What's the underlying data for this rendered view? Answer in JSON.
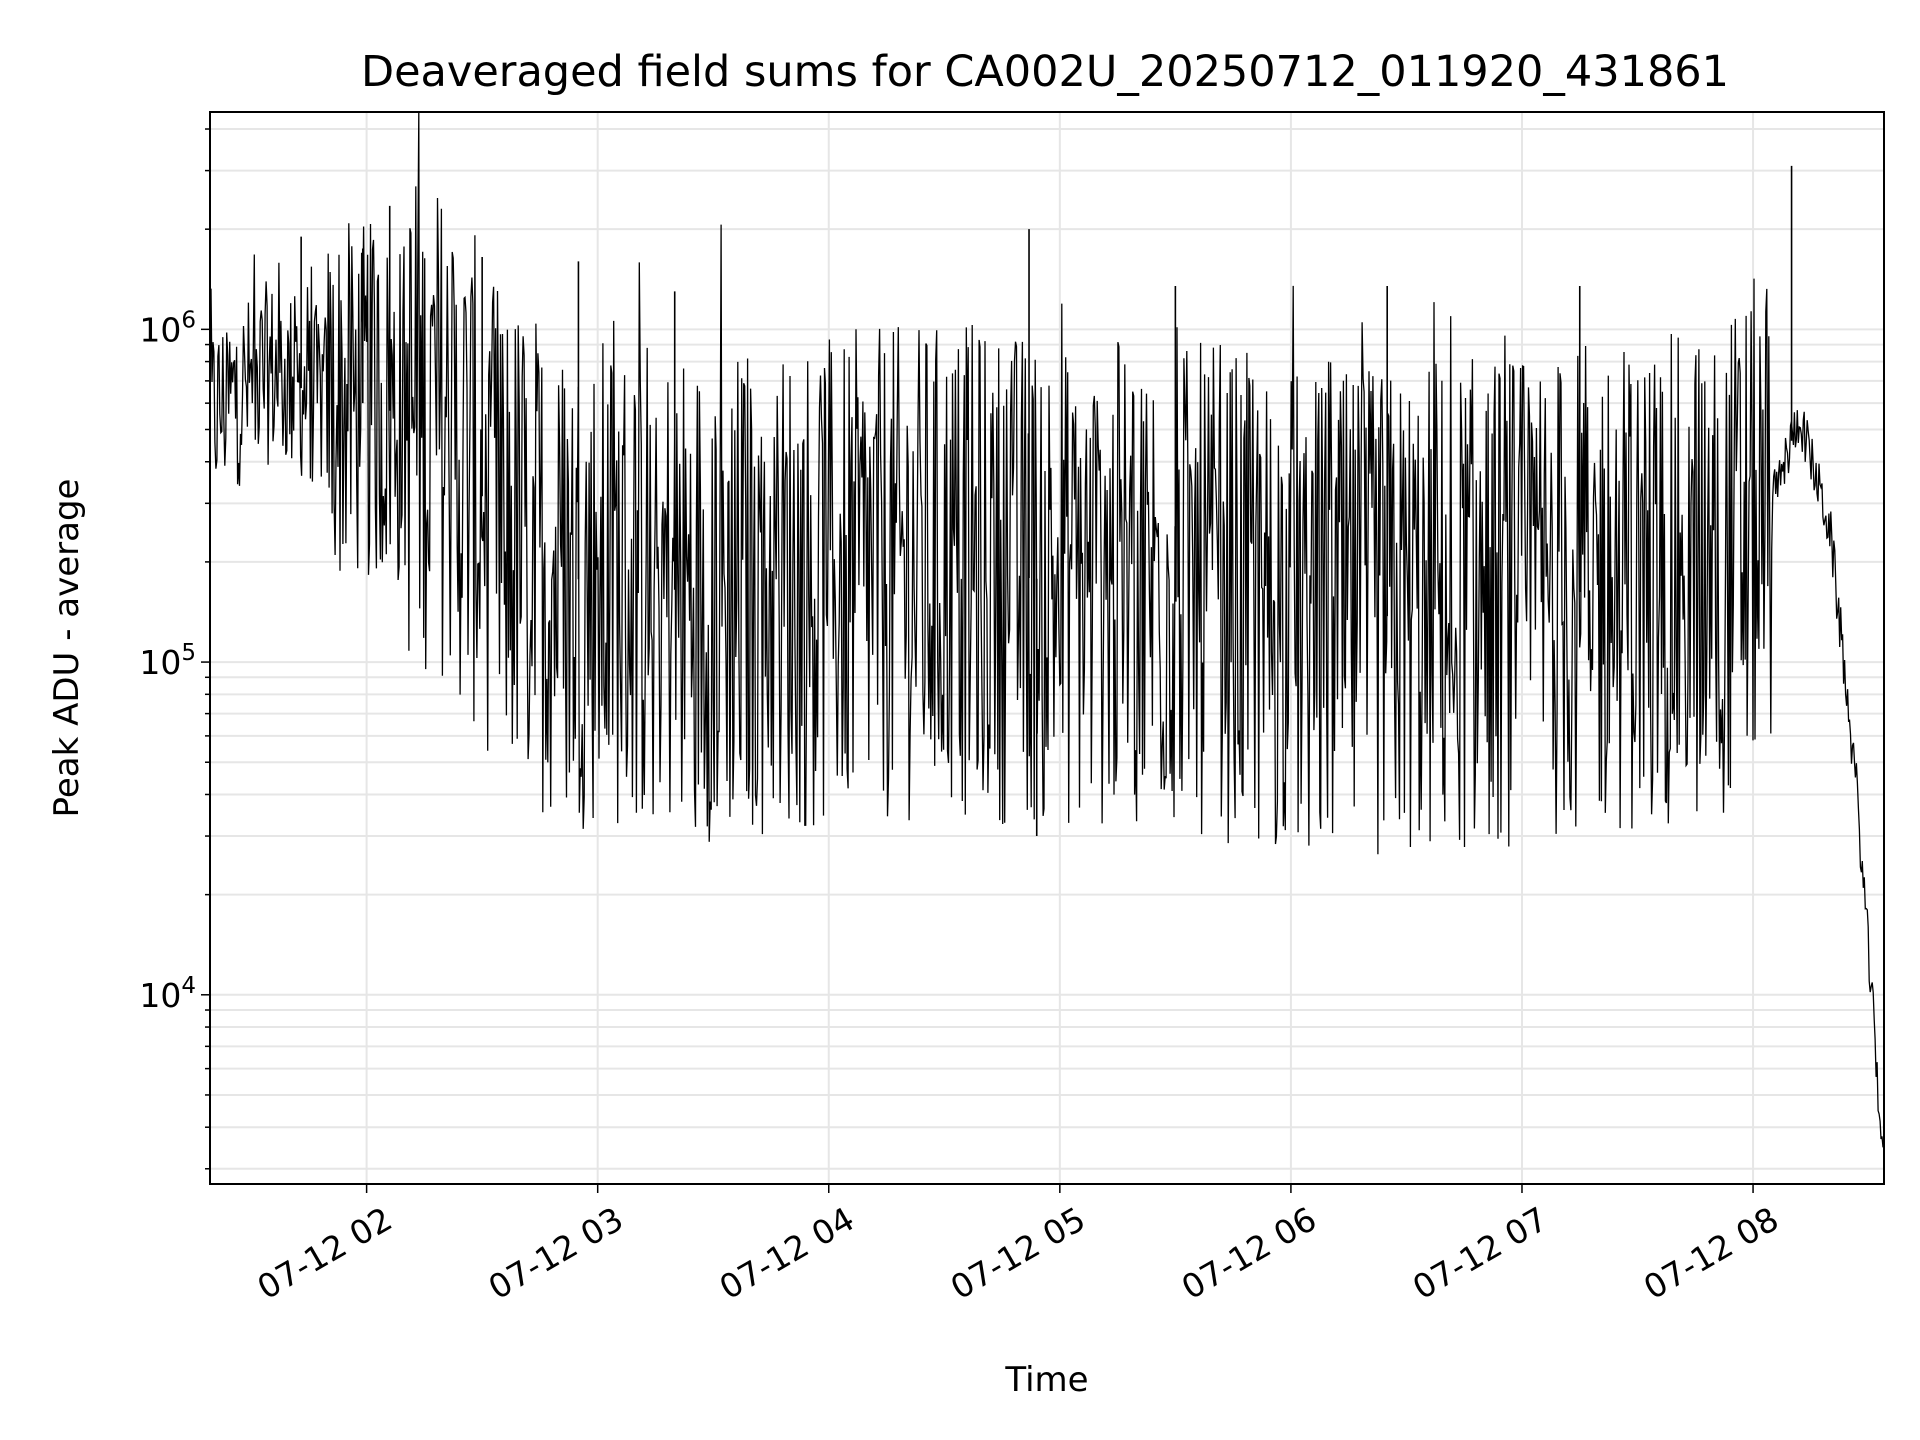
{
  "chart_data": {
    "type": "line",
    "title": "Deaveraged field sums for CA002U_20250712_011920_431861",
    "xlabel": "Time",
    "ylabel": "Peak ADU - average",
    "yscale": "log",
    "grid": true,
    "line_color": "#000000",
    "grid_color": "#e6e6e6",
    "xlim": [
      "07-12 01:19:20",
      "07-12 08:34"
    ],
    "ylim": [
      2700,
      4500000
    ],
    "x_ticks": [
      "07-12 02",
      "07-12 03",
      "07-12 04",
      "07-12 05",
      "07-12 06",
      "07-12 07",
      "07-12 08"
    ],
    "y_ticks": [
      {
        "base": "10",
        "exp": "4",
        "value": 10000
      },
      {
        "base": "10",
        "exp": "5",
        "value": 100000
      },
      {
        "base": "10",
        "exp": "6",
        "value": 1000000
      }
    ],
    "series": [
      {
        "values_note_free_anchor_points": true,
        "x": [
          "07-12 01:19:20",
          "07-12 01:35",
          "07-12 01:50",
          "07-12 02:00",
          "07-12 02:10",
          "07-12 02:20",
          "07-12 02:35",
          "07-12 02:50",
          "07-12 03:10",
          "07-12 03:30",
          "07-12 03:50",
          "07-12 04:10",
          "07-12 04:30",
          "07-12 04:50",
          "07-12 05:10",
          "07-12 05:30",
          "07-12 05:50",
          "07-12 06:10",
          "07-12 06:30",
          "07-12 06:50",
          "07-12 07:10",
          "07-12 07:30",
          "07-12 07:50",
          "07-12 08:05",
          "07-12 08:12",
          "07-12 08:20",
          "07-12 08:27",
          "07-12 08:34"
        ],
        "y": [
          550000,
          750000,
          600000,
          600000,
          550000,
          500000,
          250000,
          180000,
          170000,
          160000,
          170000,
          180000,
          190000,
          180000,
          170000,
          170000,
          150000,
          130000,
          140000,
          150000,
          160000,
          170000,
          180000,
          300000,
          550000,
          250000,
          40000,
          3000
        ]
      }
    ],
    "spikes": [
      {
        "x": "07-12 01:43",
        "y": 1900000
      },
      {
        "x": "07-12 01:59",
        "y": 1750000
      },
      {
        "x": "07-12 02:06",
        "y": 2350000
      },
      {
        "x": "07-12 02:30",
        "y": 1650000
      },
      {
        "x": "07-12 02:55",
        "y": 1600000
      },
      {
        "x": "07-12 03:20",
        "y": 1300000
      },
      {
        "x": "07-12 04:52",
        "y": 2000000
      },
      {
        "x": "07-12 04:54",
        "y": 30000
      },
      {
        "x": "07-12 05:30",
        "y": 1350000
      },
      {
        "x": "07-12 06:25",
        "y": 1350000
      },
      {
        "x": "07-12 07:15",
        "y": 1350000
      },
      {
        "x": "07-12 08:10",
        "y": 3100000
      }
    ]
  }
}
